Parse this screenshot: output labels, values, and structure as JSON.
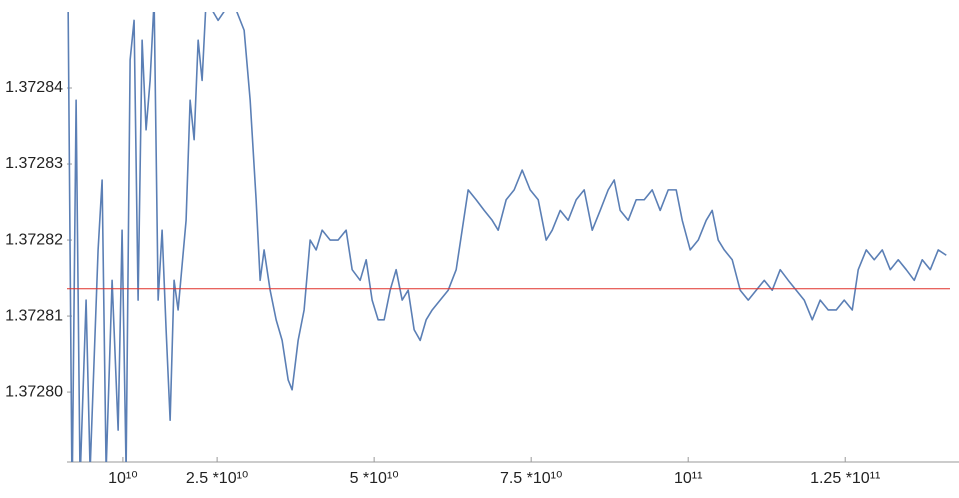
{
  "chart_data": {
    "type": "line",
    "xlim": [
      1100000000.0,
      142000000000.0
    ],
    "ylim": [
      1.3727908,
      1.37285
    ],
    "xticks": [
      {
        "value": 10000000000.0,
        "label": "10¹⁰"
      },
      {
        "value": 25000000000.0,
        "label": "2.5 *10¹⁰"
      },
      {
        "value": 50000000000.0,
        "label": "5 *10¹⁰"
      },
      {
        "value": 75000000000.0,
        "label": "7.5 *10¹⁰"
      },
      {
        "value": 100000000000.0,
        "label": "10¹¹"
      },
      {
        "value": 125000000000.0,
        "label": "1.25 *10¹¹"
      }
    ],
    "yticks": [
      {
        "value": 1.3728,
        "label": "1.37280"
      },
      1.37281,
      1.37282,
      1.37283,
      1.37284
    ],
    "reference_line": {
      "value": 1.3728136,
      "color": "#e0302a"
    },
    "series": [
      {
        "color": "#5b7fb5",
        "x": [
          1270000000.0,
          1910000000.0,
          2550000000.0,
          3180000000.0,
          4140000000.0,
          4780000000.0,
          6050000000.0,
          6690000000.0,
          7330000000.0,
          8280000000.0,
          9240000000.0,
          9870000000.0,
          10510000000.0,
          11150000000.0,
          11780000000.0,
          12420000000.0,
          13060000000.0,
          13690000000.0,
          14330000000.0,
          14970000000.0,
          15610000000.0,
          16240000000.0,
          16880000000.0,
          17520000000.0,
          18150000000.0,
          18790000000.0,
          20060000000.0,
          20700000000.0,
          21340000000.0,
          21980000000.0,
          22610000000.0,
          23250000000.0,
          25160000000.0,
          27390000000.0,
          29300000000.0,
          30260000000.0,
          31210000000.0,
          31850000000.0,
          32480000000.0,
          33440000000.0,
          34400000000.0,
          35350000000.0,
          36310000000.0,
          36940000000.0,
          37900000000.0,
          38850000000.0,
          39810000000.0,
          40770000000.0,
          41720000000.0,
          42990000000.0,
          44270000000.0,
          45540000000.0,
          46500000000.0,
          47770000000.0,
          48730000000.0,
          49680000000.0,
          50640000000.0,
          51590000000.0,
          52550000000.0,
          53500000000.0,
          54460000000.0,
          55420000000.0,
          56370000000.0,
          57330000000.0,
          58280000000.0,
          59240000000.0,
          60510000000.0,
          61790000000.0,
          63060000000.0,
          64010000000.0,
          64970000000.0,
          66240000000.0,
          67520000000.0,
          68790000000.0,
          69750000000.0,
          71020000000.0,
          72290000000.0,
          73570000000.0,
          74840000000.0,
          76120000000.0,
          77390000000.0,
          78350000000.0,
          79620000000.0,
          80890000000.0,
          82170000000.0,
          83440000000.0,
          84720000000.0,
          85990000000.0,
          87260000000.0,
          88220000000.0,
          89170000000.0,
          90450000000.0,
          91720000000.0,
          93000000000.0,
          94270000000.0,
          95540000000.0,
          96820000000.0,
          98090000000.0,
          99050000000.0,
          100320000000.0,
          101600000000.0,
          102870000000.0,
          103820000000.0,
          104780000000.0,
          105740000000.0,
          107010000000.0,
          108280000000.0,
          109560000000.0,
          110830000000.0,
          112110000000.0,
          113380000000.0,
          114650000000.0,
          115930000000.0,
          117200000000.0,
          118470000000.0,
          119750000000.0,
          121020000000.0,
          122300000000.0,
          123570000000.0,
          124840000000.0,
          126120000000.0,
          127070000000.0,
          128350000000.0,
          129620000000.0,
          130900000000.0,
          132170000000.0,
          133440000000.0,
          134720000000.0,
          135990000000.0,
          137260000000.0,
          138540000000.0,
          139810000000.0,
          141090000000.0
        ],
        "values": [
          1.3728516,
          1.3727858,
          1.3728384,
          1.3727884,
          1.3728121,
          1.3727897,
          1.3728187,
          1.3728279,
          1.3727897,
          1.3728147,
          1.372795,
          1.3728213,
          1.3727897,
          1.3728437,
          1.3728489,
          1.3728121,
          1.3728463,
          1.3728345,
          1.372841,
          1.3728516,
          1.3728121,
          1.3728213,
          1.3728082,
          1.3727963,
          1.3728147,
          1.3728108,
          1.3728226,
          1.3728384,
          1.3728332,
          1.3728463,
          1.372841,
          1.3728516,
          1.3728489,
          1.3728516,
          1.3728476,
          1.3728384,
          1.3728253,
          1.3728147,
          1.3728187,
          1.3728134,
          1.3728095,
          1.3728068,
          1.3728016,
          1.3728003,
          1.3728068,
          1.3728108,
          1.37282,
          1.3728187,
          1.3728213,
          1.37282,
          1.37282,
          1.3728213,
          1.3728161,
          1.3728147,
          1.3728174,
          1.3728121,
          1.3728095,
          1.3728095,
          1.3728134,
          1.3728161,
          1.3728121,
          1.3728134,
          1.3728082,
          1.3728068,
          1.3728095,
          1.3728108,
          1.3728121,
          1.3728134,
          1.3728161,
          1.3728213,
          1.3728266,
          1.3728253,
          1.3728239,
          1.3728226,
          1.3728213,
          1.3728253,
          1.3728266,
          1.3728292,
          1.3728266,
          1.3728253,
          1.37282,
          1.3728213,
          1.3728239,
          1.3728226,
          1.3728253,
          1.3728266,
          1.3728213,
          1.3728239,
          1.3728266,
          1.3728279,
          1.3728239,
          1.3728226,
          1.3728253,
          1.3728253,
          1.3728266,
          1.3728239,
          1.3728266,
          1.3728266,
          1.3728226,
          1.3728187,
          1.37282,
          1.3728226,
          1.3728239,
          1.37282,
          1.3728187,
          1.3728174,
          1.3728134,
          1.3728121,
          1.3728134,
          1.3728147,
          1.3728134,
          1.3728161,
          1.3728147,
          1.3728134,
          1.3728121,
          1.3728095,
          1.3728121,
          1.3728108,
          1.3728108,
          1.3728121,
          1.3728108,
          1.3728161,
          1.3728187,
          1.3728174,
          1.3728187,
          1.3728161,
          1.3728174,
          1.3728161,
          1.3728147,
          1.3728174,
          1.3728161,
          1.3728187,
          1.372818
        ]
      }
    ]
  }
}
